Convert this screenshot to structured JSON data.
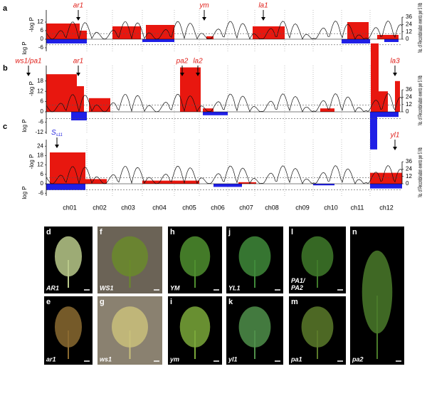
{
  "figure": {
    "scans": [
      {
        "label": "a",
        "genes": [
          "ar1",
          "ym",
          "la1"
        ],
        "left_axis": {
          "top_title": "-log P",
          "bottom_title": "log P",
          "ticks": [
            12,
            6,
            0,
            -6
          ]
        },
        "right_axis": {
          "title": "No. of Recombination events per 5 Mb",
          "ticks": [
            36,
            24,
            12,
            0
          ]
        }
      },
      {
        "label": "b",
        "genes": [
          "ws1/pa1",
          "ar1",
          "pa2",
          "la2",
          "la3"
        ],
        "left_axis": {
          "top_title": "-log P",
          "bottom_title": "log P",
          "ticks": [
            18,
            12,
            6,
            0,
            -6,
            -12
          ]
        },
        "right_axis": {
          "title": "No. of Recombination events per 5 Mb",
          "ticks": [
            36,
            24,
            12,
            0
          ]
        }
      },
      {
        "label": "c",
        "genes": [
          {
            "base": "S",
            "sub": "s11"
          },
          "yl1"
        ],
        "left_axis": {
          "top_title": "-log P",
          "bottom_title": "log P",
          "ticks": [
            24,
            18,
            12,
            6,
            0,
            -6
          ]
        },
        "right_axis": {
          "title": "No. of Recombination events per 5 Mb",
          "ticks": [
            36,
            24,
            12,
            0
          ]
        }
      }
    ],
    "chromosomes": [
      "ch01",
      "ch02",
      "ch03",
      "ch04",
      "ch05",
      "ch06",
      "ch07",
      "ch08",
      "ch09",
      "ch10",
      "ch11",
      "ch12"
    ],
    "photos": [
      {
        "label": "d",
        "caption": "AR1"
      },
      {
        "label": "e",
        "caption": "ar1"
      },
      {
        "label": "f",
        "caption": "WS1"
      },
      {
        "label": "g",
        "caption": "ws1"
      },
      {
        "label": "h",
        "caption": "YM"
      },
      {
        "label": "i",
        "caption": "ym"
      },
      {
        "label": "j",
        "caption": "YL1"
      },
      {
        "label": "k",
        "caption": "yl1"
      },
      {
        "label": "l",
        "caption": "PA1/\nPA2"
      },
      {
        "label": "m",
        "caption": "pa1"
      },
      {
        "label": "n",
        "caption": "pa2"
      }
    ]
  }
}
